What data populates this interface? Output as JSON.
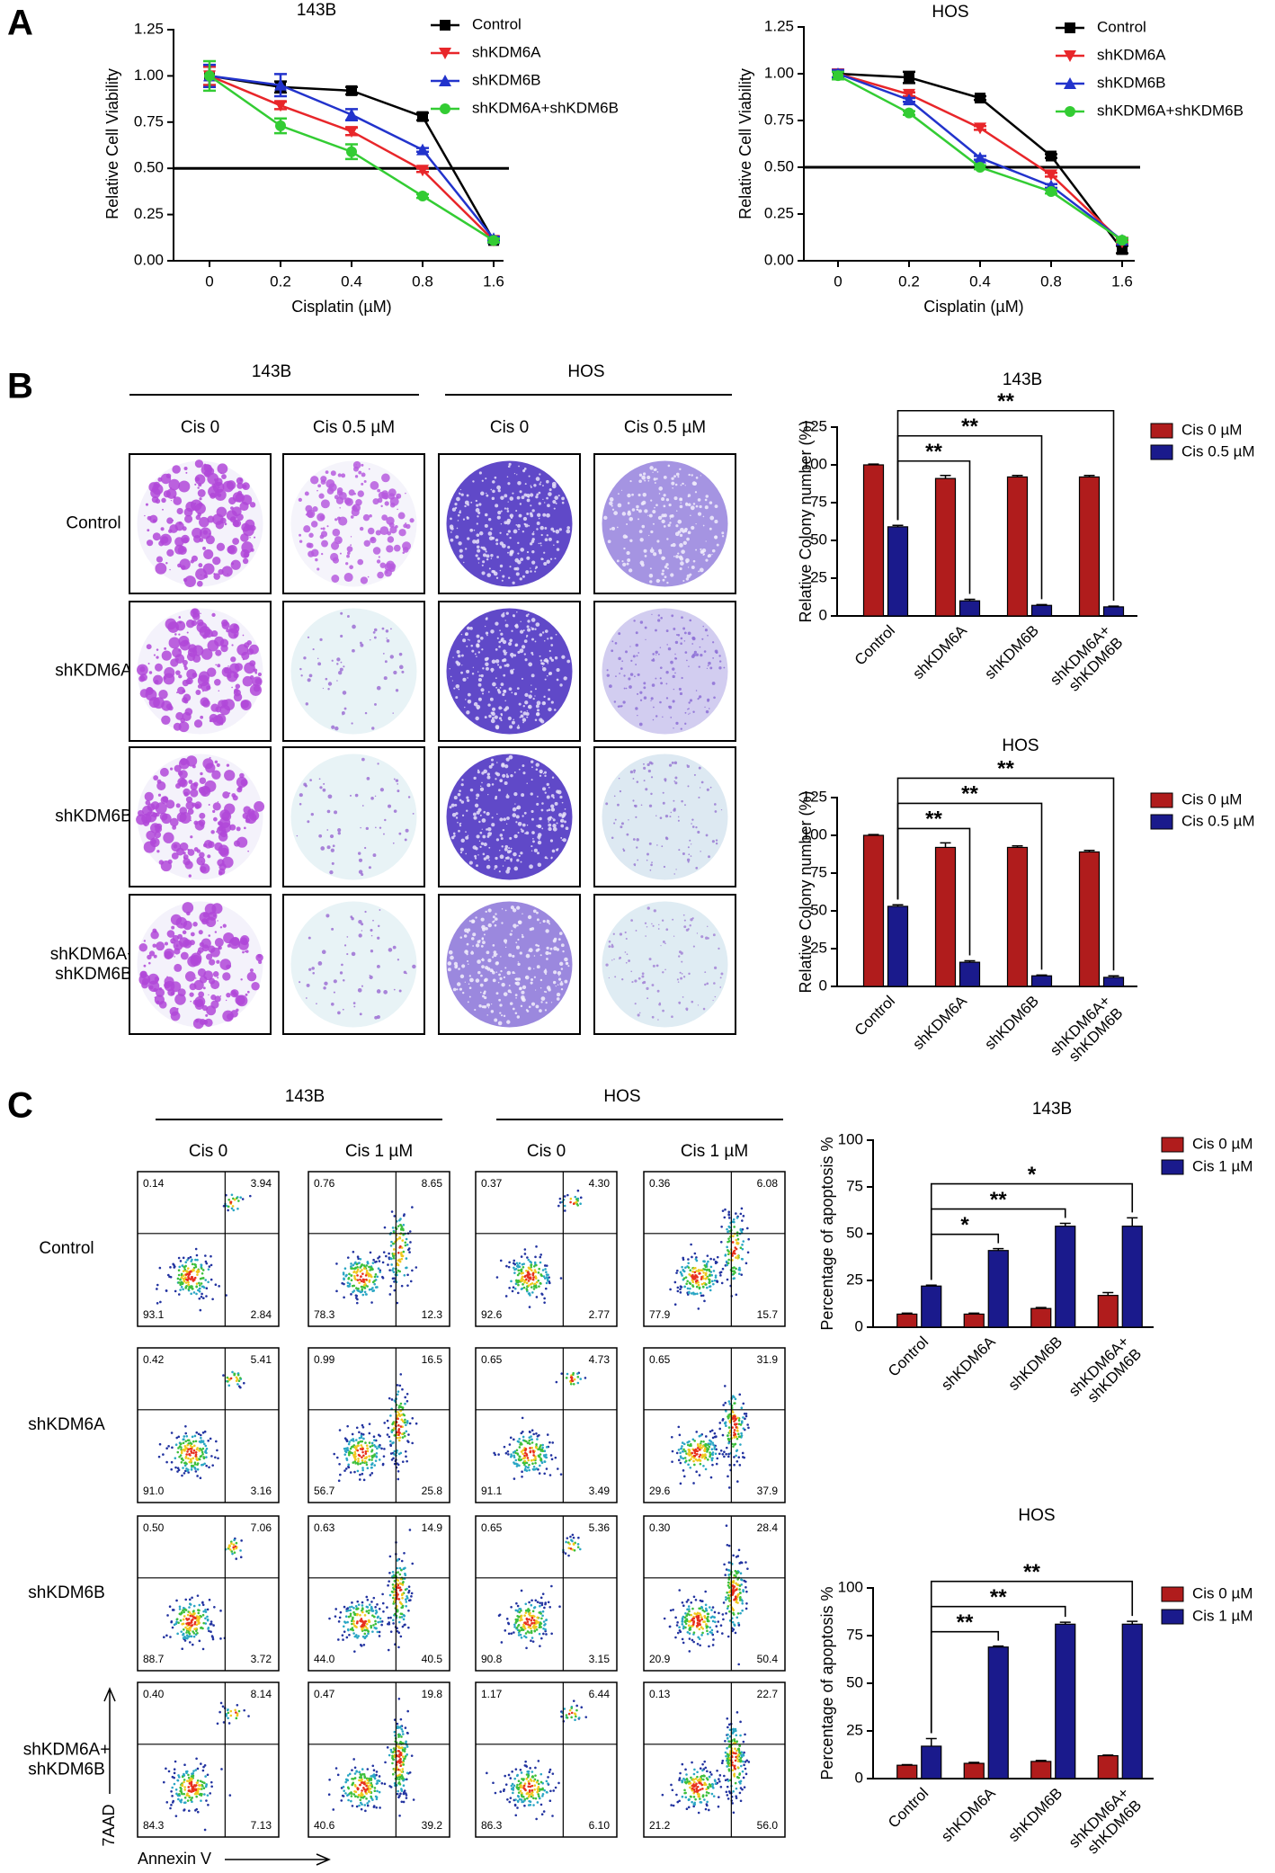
{
  "panel_labels": [
    "A",
    "B",
    "C"
  ],
  "chart_data": [
    {
      "type": "line",
      "title": "143B",
      "xlabel": "Cisplatin (µM)",
      "ylabel": "Relative Cell Viability",
      "categories": [
        "0",
        "0.2",
        "0.4",
        "0.8",
        "1.6"
      ],
      "ylim": [
        0,
        1.25
      ],
      "yticks": [
        {
          "value": 0,
          "label": "0.00"
        },
        0.25,
        {
          "value": 0.5,
          "label": "0.50"
        },
        0.75,
        {
          "value": 1,
          "label": "1.00"
        },
        1.25
      ],
      "reference_line": 0.5,
      "series": [
        {
          "name": "Control",
          "color": "#000000",
          "marker": "square",
          "values": [
            1,
            0.94,
            0.92,
            0.78,
            0.11
          ],
          "errors": [
            0.05,
            0.03,
            0.02,
            0.02,
            0.01
          ]
        },
        {
          "name": "shKDM6A",
          "color": "#e8262a",
          "marker": "triangle-down",
          "values": [
            1,
            0.84,
            0.7,
            0.49,
            0.11
          ],
          "errors": [
            0.05,
            0.02,
            0.02,
            0.01,
            0.01
          ]
        },
        {
          "name": "shKDM6B",
          "color": "#2233cc",
          "marker": "triangle-up",
          "values": [
            1,
            0.95,
            0.79,
            0.6,
            0.12
          ],
          "errors": [
            0.06,
            0.06,
            0.03,
            0.01,
            0.01
          ]
        },
        {
          "name": "shKDM6A+shKDM6B",
          "color": "#33cc33",
          "marker": "circle",
          "values": [
            1,
            0.73,
            0.59,
            0.35,
            0.11
          ],
          "errors": [
            0.08,
            0.04,
            0.04,
            0.01,
            0.01
          ]
        }
      ]
    },
    {
      "type": "line",
      "title": "HOS",
      "xlabel": "Cisplatin (µM)",
      "ylabel": "Relative Cell Viability",
      "categories": [
        "0",
        "0.2",
        "0.4",
        "0.8",
        "1.6"
      ],
      "ylim": [
        0,
        1.25
      ],
      "yticks": [
        {
          "value": 0,
          "label": "0.00"
        },
        0.25,
        {
          "value": 0.5,
          "label": "0.50"
        },
        0.75,
        {
          "value": 1,
          "label": "1.00"
        },
        1.25
      ],
      "reference_line": 0.5,
      "series": [
        {
          "name": "Control",
          "color": "#000000",
          "marker": "square",
          "values": [
            1,
            0.98,
            0.87,
            0.56,
            0.06
          ],
          "errors": [
            0.02,
            0.03,
            0.01,
            0.01,
            0.02
          ]
        },
        {
          "name": "shKDM6A",
          "color": "#e8262a",
          "marker": "triangle-down",
          "values": [
            1,
            0.89,
            0.71,
            0.46,
            0.1
          ],
          "errors": [
            0.02,
            0.01,
            0.01,
            0.01,
            0.01
          ]
        },
        {
          "name": "shKDM6B",
          "color": "#2233cc",
          "marker": "triangle-up",
          "values": [
            1,
            0.86,
            0.55,
            0.4,
            0.11
          ],
          "errors": [
            0.02,
            0.01,
            0.01,
            0.01,
            0.01
          ]
        },
        {
          "name": "shKDM6A+shKDM6B",
          "color": "#33cc33",
          "marker": "circle",
          "values": [
            0.99,
            0.79,
            0.5,
            0.37,
            0.11
          ],
          "errors": [
            0.02,
            0.01,
            0.01,
            0.01,
            0.01
          ]
        }
      ]
    },
    {
      "type": "bar",
      "title": "143B",
      "ylabel": "Relative Colony number (%)",
      "categories": [
        "Control",
        "shKDM6A",
        "shKDM6B",
        "shKDM6A+\nshKDM6B"
      ],
      "ylim": [
        0,
        125
      ],
      "yticks": [
        0,
        25,
        50,
        75,
        100,
        125
      ],
      "significance": [
        null,
        "**",
        "**",
        "**"
      ],
      "series": [
        {
          "name": "Cis 0 µM",
          "color": "#b01c1c",
          "values": [
            100,
            91,
            92,
            92
          ],
          "errors": [
            0.5,
            2,
            1,
            1
          ]
        },
        {
          "name": "Cis 0.5 µM",
          "color": "#1a1a8c",
          "values": [
            59,
            10,
            7,
            6
          ],
          "errors": [
            1,
            1,
            0.5,
            0.5
          ]
        }
      ]
    },
    {
      "type": "bar",
      "title": "HOS",
      "ylabel": "Relative Colony number (%)",
      "categories": [
        "Control",
        "shKDM6A",
        "shKDM6B",
        "shKDM6A+\nshKDM6B"
      ],
      "ylim": [
        0,
        125
      ],
      "yticks": [
        0,
        25,
        50,
        75,
        100,
        125
      ],
      "significance": [
        null,
        "**",
        "**",
        "**"
      ],
      "series": [
        {
          "name": "Cis 0 µM",
          "color": "#b01c1c",
          "values": [
            100,
            92,
            92,
            89
          ],
          "errors": [
            0.5,
            3,
            1,
            1
          ]
        },
        {
          "name": "Cis 0.5 µM",
          "color": "#1a1a8c",
          "values": [
            53,
            16,
            7,
            6
          ],
          "errors": [
            1,
            1,
            0.5,
            1
          ]
        }
      ]
    },
    {
      "type": "bar",
      "title": "143B",
      "ylabel": "Percentage of apoptosis %",
      "categories": [
        "Control",
        "shKDM6A",
        "shKDM6B",
        "shKDM6A+\nshKDM6B"
      ],
      "ylim": [
        0,
        100
      ],
      "yticks": [
        0,
        25,
        50,
        75,
        100
      ],
      "significance": [
        null,
        "*",
        "**",
        "*"
      ],
      "series": [
        {
          "name": "Cis 0 µM",
          "color": "#b01c1c",
          "values": [
            7,
            7,
            10,
            17
          ],
          "errors": [
            0.5,
            0.5,
            0.5,
            1.5
          ]
        },
        {
          "name": "Cis 1 µM",
          "color": "#1a1a8c",
          "values": [
            22,
            41,
            54,
            54
          ],
          "errors": [
            0.5,
            1,
            1.5,
            4.5
          ]
        }
      ]
    },
    {
      "type": "bar",
      "title": "HOS",
      "ylabel": "Percentage of apoptosis %",
      "categories": [
        "Control",
        "shKDM6A",
        "shKDM6B",
        "shKDM6A+\nshKDM6B"
      ],
      "ylim": [
        0,
        100
      ],
      "yticks": [
        0,
        25,
        50,
        75,
        100
      ],
      "significance": [
        null,
        "**",
        "**",
        "**"
      ],
      "series": [
        {
          "name": "Cis 0 µM",
          "color": "#b01c1c",
          "values": [
            7,
            8,
            9,
            12
          ],
          "errors": [
            0.3,
            0.5,
            0.5,
            0.3
          ]
        },
        {
          "name": "Cis 1 µM",
          "color": "#1a1a8c",
          "values": [
            17,
            69,
            81,
            81
          ],
          "errors": [
            4,
            0.5,
            1,
            1.5
          ]
        }
      ]
    }
  ],
  "colony_assay": {
    "groups": [
      "143B",
      "HOS"
    ],
    "columns": [
      "Cis 0",
      "Cis 0.5 µM",
      "Cis 0",
      "Cis 0.5 µM"
    ],
    "rows": [
      "Control",
      "shKDM6A",
      "shKDM6B",
      "shKDM6A+\nshKDM6B"
    ]
  },
  "flow_cytometry": {
    "groups": [
      "143B",
      "HOS"
    ],
    "columns": [
      "Cis 0",
      "Cis 1 µM",
      "Cis 0",
      "Cis 1 µM"
    ],
    "rows": [
      "Control",
      "shKDM6A",
      "shKDM6B",
      "shKDM6A+\nshKDM6B"
    ],
    "y_axis_label": "7AAD",
    "x_axis_label": "Annexin V",
    "quadrants": [
      [
        [
          "0.14",
          "3.94",
          "93.1",
          "2.84"
        ],
        [
          "0.76",
          "8.65",
          "78.3",
          "12.3"
        ],
        [
          "0.37",
          "4.30",
          "92.6",
          "2.77"
        ],
        [
          "0.36",
          "6.08",
          "77.9",
          "15.7"
        ]
      ],
      [
        [
          "0.42",
          "5.41",
          "91.0",
          "3.16"
        ],
        [
          "0.99",
          "16.5",
          "56.7",
          "25.8"
        ],
        [
          "0.65",
          "4.73",
          "91.1",
          "3.49"
        ],
        [
          "0.65",
          "31.9",
          "29.6",
          "37.9"
        ]
      ],
      [
        [
          "0.50",
          "7.06",
          "88.7",
          "3.72"
        ],
        [
          "0.63",
          "14.9",
          "44.0",
          "40.5"
        ],
        [
          "0.65",
          "5.36",
          "90.8",
          "3.15"
        ],
        [
          "0.30",
          "28.4",
          "20.9",
          "50.4"
        ]
      ],
      [
        [
          "0.40",
          "8.14",
          "84.3",
          "7.13"
        ],
        [
          "0.47",
          "19.8",
          "40.6",
          "39.2"
        ],
        [
          "1.17",
          "6.44",
          "86.3",
          "6.10"
        ],
        [
          "0.13",
          "22.7",
          "21.2",
          "56.0"
        ]
      ]
    ]
  }
}
